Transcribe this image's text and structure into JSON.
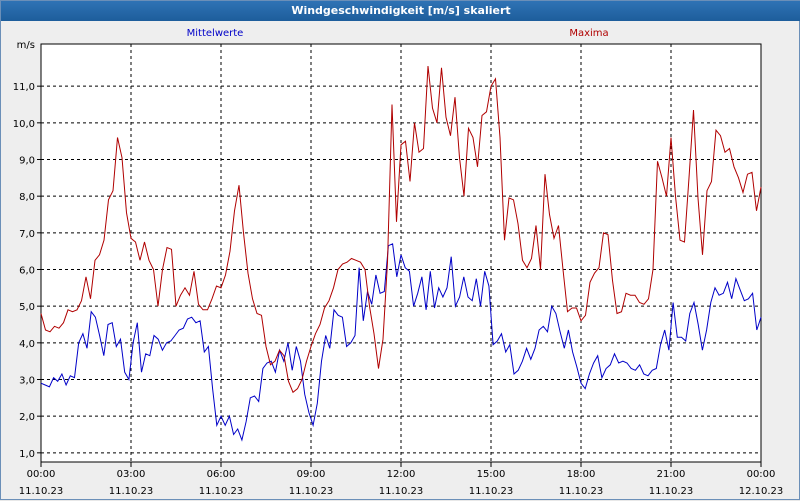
{
  "title": "Windgeschwindigkeit [m/s] skaliert",
  "colors": {
    "mean": "#0000c8",
    "max": "#b00000",
    "grid": "#000000",
    "plot_bg": "#ffffff",
    "title_bg": "#1d5d9b"
  },
  "chart_data": {
    "type": "line",
    "title": "Windgeschwindigkeit [m/s] skaliert",
    "ylabel": "m/s",
    "ylim": [
      0.75,
      12.15
    ],
    "yticks": [
      "1,0",
      "2,0",
      "3,0",
      "4,0",
      "5,0",
      "6,0",
      "7,0",
      "8,0",
      "9,0",
      "10,0",
      "11,0"
    ],
    "xlim_hours": [
      0,
      24
    ],
    "xticks": [
      {
        "time": "00:00",
        "date": "11.10.23"
      },
      {
        "time": "03:00",
        "date": "11.10.23"
      },
      {
        "time": "06:00",
        "date": "11.10.23"
      },
      {
        "time": "09:00",
        "date": "11.10.23"
      },
      {
        "time": "12:00",
        "date": "11.10.23"
      },
      {
        "time": "15:00",
        "date": "11.10.23"
      },
      {
        "time": "18:00",
        "date": "11.10.23"
      },
      {
        "time": "21:00",
        "date": "11.10.23"
      },
      {
        "time": "00:00",
        "date": "12.10.23"
      }
    ],
    "grid": true,
    "series": [
      {
        "name": "Mittelwerte",
        "color": "#0000c8",
        "legend_position": "top-left",
        "values": [
          2.9,
          2.85,
          2.8,
          3.05,
          2.95,
          3.15,
          2.85,
          3.1,
          3.05,
          4.0,
          4.25,
          3.85,
          4.85,
          4.7,
          4.2,
          3.65,
          4.5,
          4.55,
          3.9,
          4.1,
          3.2,
          3.0,
          4.0,
          4.55,
          3.2,
          3.7,
          3.65,
          4.2,
          4.1,
          3.8,
          4.0,
          4.05,
          4.2,
          4.35,
          4.4,
          4.65,
          4.7,
          4.55,
          4.6,
          3.75,
          3.9,
          2.75,
          1.75,
          2.0,
          1.75,
          2.0,
          1.5,
          1.65,
          1.35,
          1.85,
          2.5,
          2.55,
          2.4,
          3.3,
          3.45,
          3.5,
          3.2,
          3.8,
          3.5,
          4.0,
          3.25,
          3.9,
          3.5,
          2.6,
          2.1,
          1.75,
          2.35,
          3.5,
          4.2,
          3.85,
          4.9,
          4.75,
          4.7,
          3.9,
          4.0,
          4.2,
          6.05,
          4.6,
          5.4,
          5.05,
          5.85,
          5.35,
          5.4,
          6.65,
          6.7,
          5.8,
          6.4,
          6.05,
          5.95,
          5.0,
          5.35,
          5.8,
          4.9,
          5.95,
          4.95,
          5.5,
          5.25,
          5.5,
          6.35,
          5.0,
          5.25,
          5.8,
          5.25,
          5.15,
          5.75,
          5.0,
          5.95,
          5.55,
          3.95,
          4.05,
          4.25,
          3.75,
          3.95,
          3.15,
          3.25,
          3.5,
          3.85,
          3.55,
          3.85,
          4.35,
          4.45,
          4.3,
          5.0,
          4.8,
          4.3,
          3.85,
          4.35,
          3.75,
          3.35,
          2.9,
          2.75,
          3.15,
          3.45,
          3.65,
          3.05,
          3.3,
          3.4,
          3.7,
          3.45,
          3.5,
          3.45,
          3.3,
          3.25,
          3.4,
          3.15,
          3.1,
          3.25,
          3.3,
          3.95,
          4.35,
          3.8,
          5.1,
          4.15,
          4.15,
          4.05,
          4.8,
          5.1,
          4.5,
          3.8,
          4.35,
          5.1,
          5.5,
          5.3,
          5.35,
          5.65,
          5.2,
          5.75,
          5.45,
          5.15,
          5.2,
          5.35,
          4.35,
          4.7
        ]
      },
      {
        "name": "Maxima",
        "color": "#b00000",
        "legend_position": "top-right",
        "values": [
          4.8,
          4.35,
          4.3,
          4.45,
          4.4,
          4.55,
          4.9,
          4.85,
          4.9,
          5.15,
          5.8,
          5.2,
          6.25,
          6.4,
          6.8,
          7.9,
          8.15,
          9.6,
          9.05,
          7.55,
          6.85,
          6.75,
          6.25,
          6.75,
          6.25,
          6.0,
          5.0,
          6.0,
          6.6,
          6.55,
          5.0,
          5.3,
          5.5,
          5.3,
          5.95,
          5.05,
          4.9,
          4.9,
          5.2,
          5.55,
          5.5,
          5.85,
          6.5,
          7.6,
          8.3,
          7.0,
          5.9,
          5.2,
          4.8,
          4.75,
          3.9,
          3.4,
          3.5,
          3.8,
          3.65,
          2.95,
          2.65,
          2.75,
          3.0,
          3.5,
          3.9,
          4.25,
          4.5,
          4.95,
          5.15,
          5.5,
          6.0,
          6.15,
          6.2,
          6.3,
          6.25,
          6.2,
          6.0,
          5.0,
          4.25,
          3.3,
          4.1,
          6.2,
          10.5,
          7.3,
          9.4,
          9.5,
          8.4,
          10.0,
          9.2,
          9.3,
          11.55,
          10.4,
          10.0,
          11.5,
          10.15,
          9.65,
          10.7,
          9.05,
          8.0,
          9.85,
          9.6,
          8.8,
          10.2,
          10.3,
          11.0,
          11.2,
          9.6,
          6.8,
          7.95,
          7.9,
          7.25,
          6.25,
          6.05,
          6.3,
          7.2,
          6.0,
          8.6,
          7.5,
          6.85,
          7.2,
          6.0,
          4.85,
          4.95,
          4.95,
          4.6,
          4.75,
          5.65,
          5.9,
          6.05,
          7.0,
          6.95,
          5.7,
          4.8,
          4.85,
          5.35,
          5.3,
          5.3,
          5.1,
          5.05,
          5.2,
          6.0,
          8.95,
          8.5,
          8.0,
          9.6,
          8.0,
          6.8,
          6.75,
          8.5,
          10.35,
          7.95,
          6.4,
          8.15,
          8.4,
          9.8,
          9.65,
          9.2,
          9.3,
          8.8,
          8.5,
          8.1,
          8.6,
          8.65,
          7.6,
          8.25
        ]
      }
    ]
  }
}
